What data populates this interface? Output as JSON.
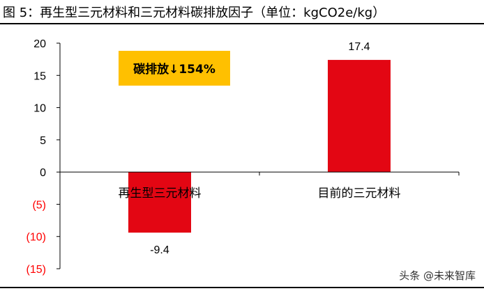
{
  "figure": {
    "title": "图 5：再生型三元材料和三元材料碳排放因子（单位：kgCO2e/kg）"
  },
  "watermark": "头条 @未来智库",
  "colors": {
    "bar": "#e30613",
    "callout_bg": "#ffc000",
    "negative_tick": "#ff0000",
    "axis": "#000000"
  },
  "chart_data": {
    "type": "bar",
    "categories": [
      "再生型三元材料",
      "目前的三元材料"
    ],
    "values": [
      -9.4,
      17.4
    ],
    "data_labels": [
      "-9.4",
      "17.4"
    ],
    "ylim": [
      -15,
      20
    ],
    "yticks": [
      20,
      15,
      10,
      5,
      0,
      -5,
      -10,
      -15
    ],
    "ytick_labels": [
      "20",
      "15",
      "10",
      "5",
      "0",
      "(5)",
      "(10)",
      "(15)"
    ],
    "negative_format": "parentheses",
    "grid": false,
    "legend": false,
    "annotation": "碳排放↓154%"
  }
}
